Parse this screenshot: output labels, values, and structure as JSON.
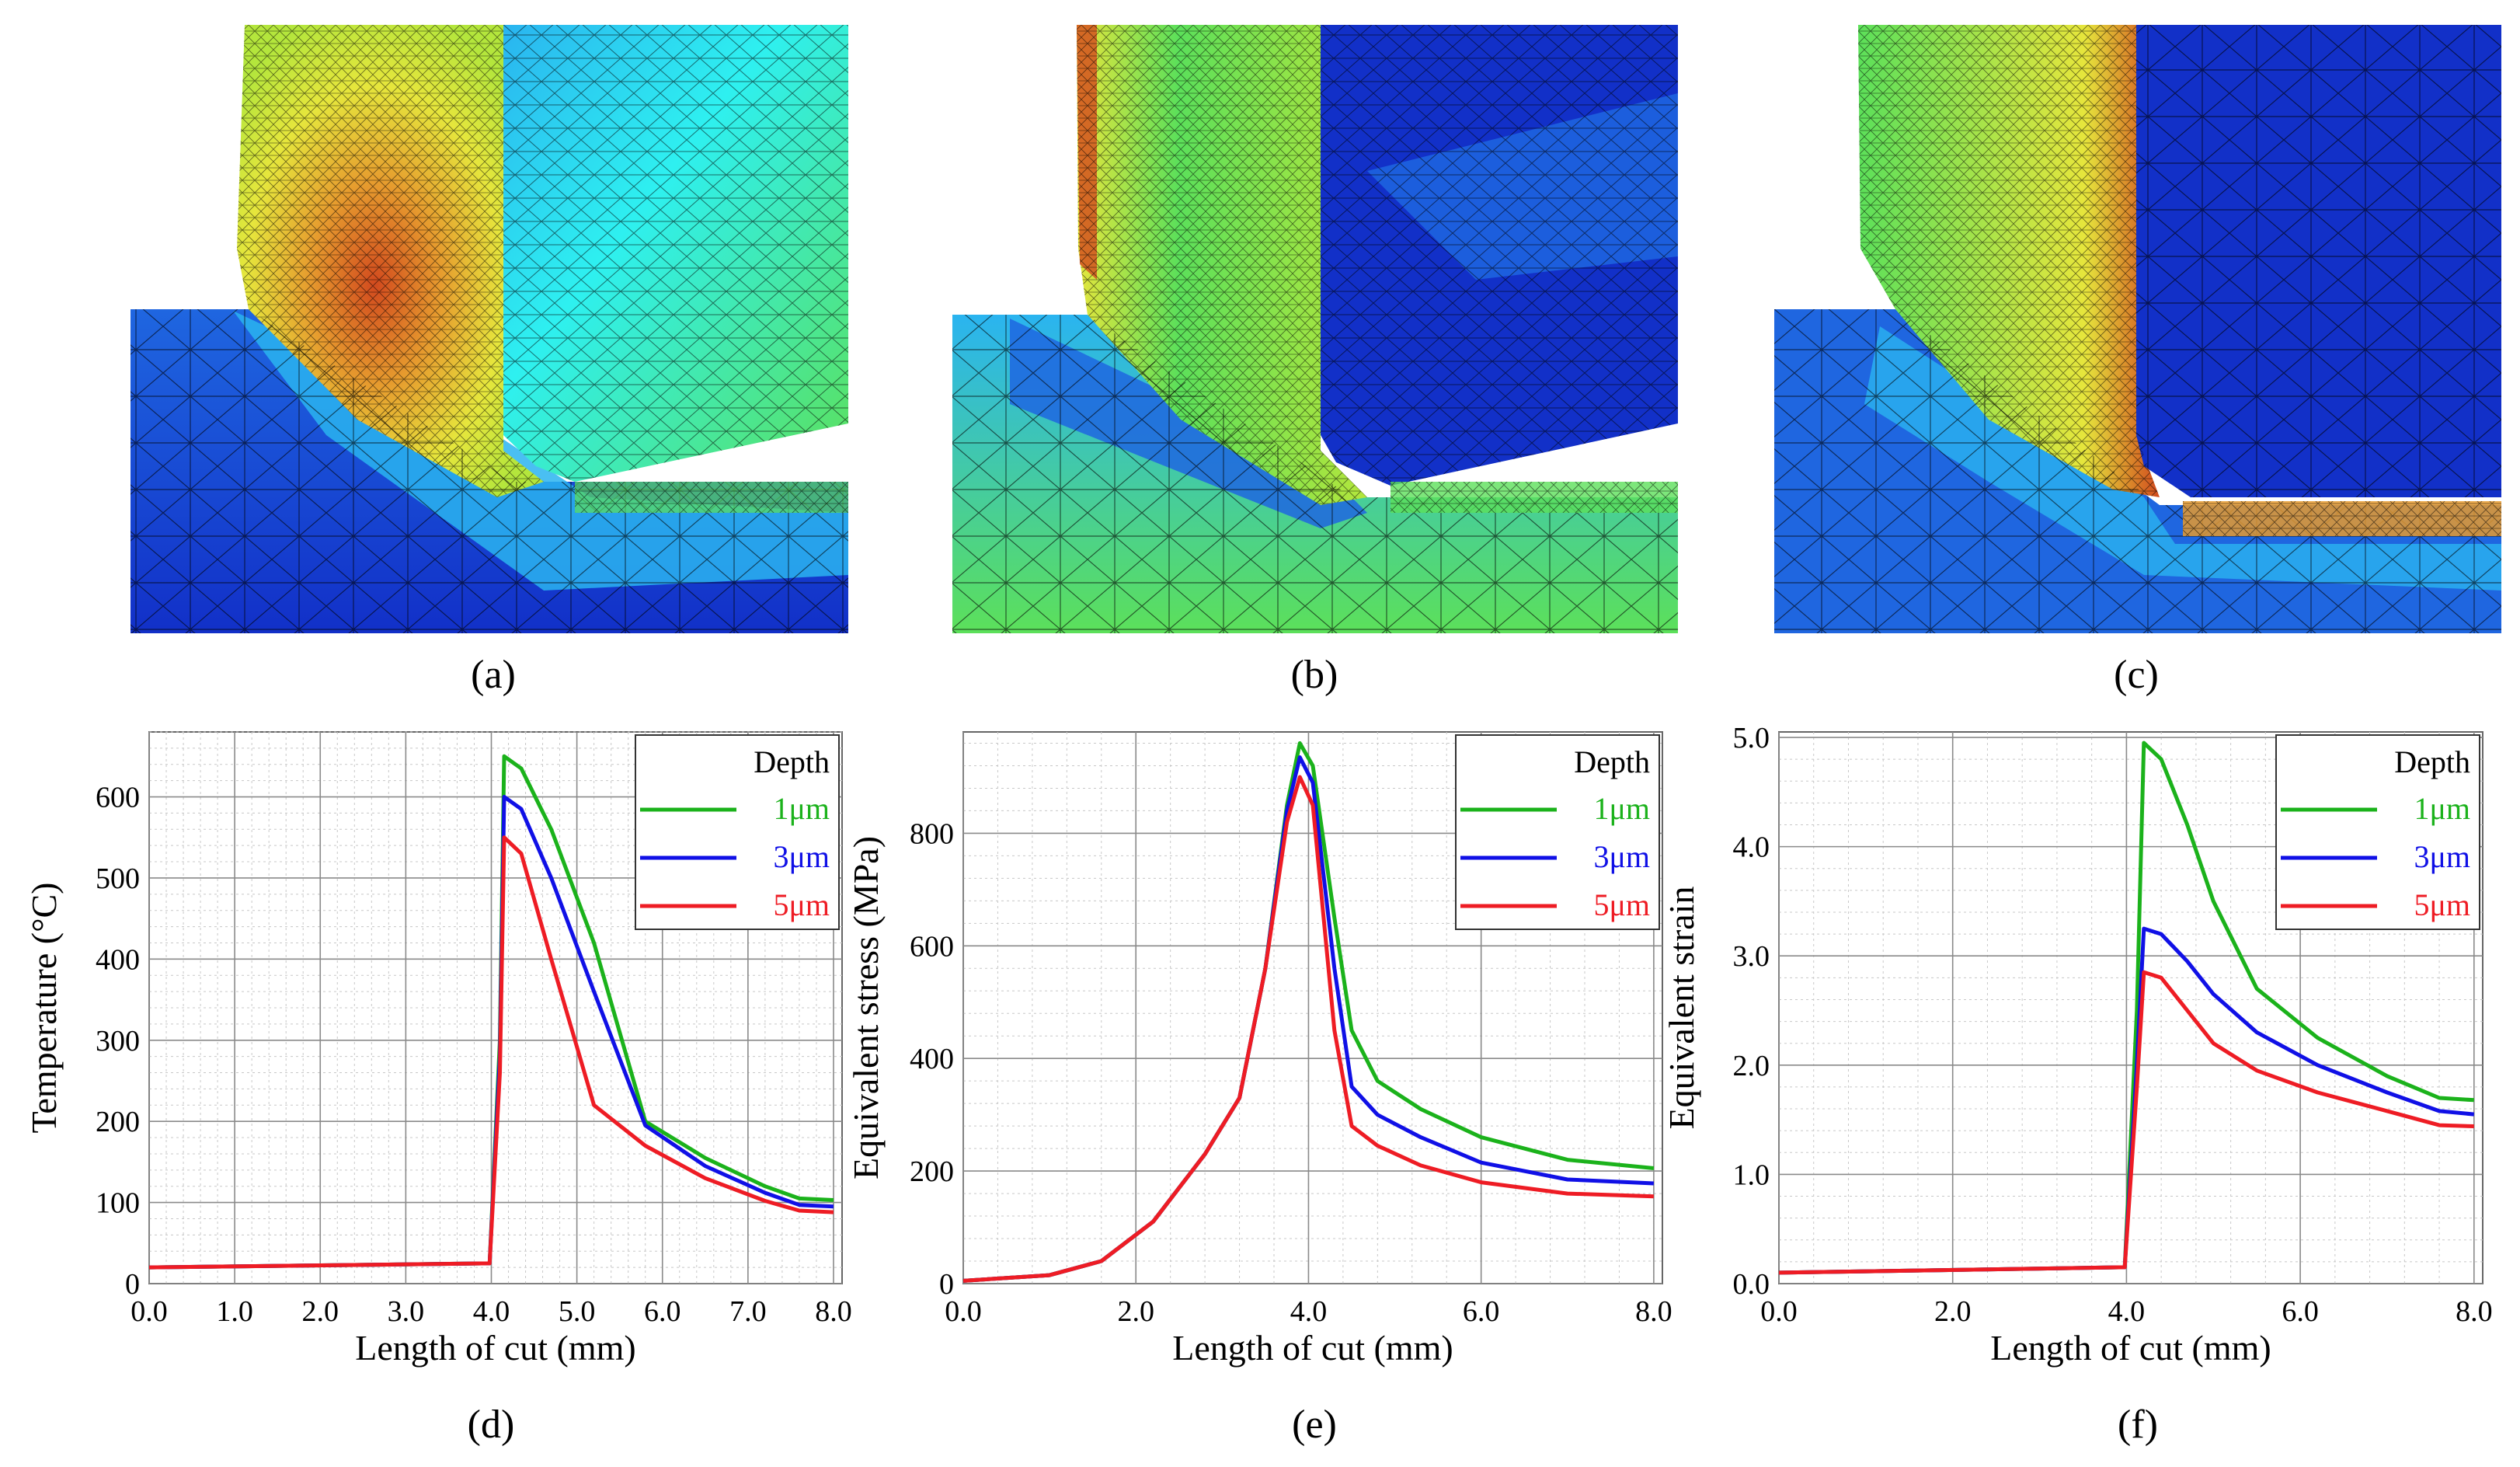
{
  "panel_labels": [
    "(a)",
    "(b)",
    "(c)",
    "(d)",
    "(e)",
    "(f)"
  ],
  "legend": {
    "title": "Depth",
    "entries": [
      {
        "label": "1μm",
        "color": "#1bb21b"
      },
      {
        "label": "3μm",
        "color": "#1010e6"
      },
      {
        "label": "5μm",
        "color": "#ee1c24"
      }
    ]
  },
  "contour_colors": {
    "deep_blue": "#1230c8",
    "blue": "#1f66e0",
    "light_blue": "#2ab4f0",
    "cyan": "#2ef0f0",
    "green": "#5ce05a",
    "yellow_green": "#b4e63c",
    "yellow": "#e6e63c",
    "orange": "#e69a2e",
    "red": "#d24a1e"
  },
  "chart_data": [
    {
      "type": "line",
      "xlabel": "Length of cut (mm)",
      "ylabel": "Temperature (°C)",
      "xlim": [
        0,
        8.1
      ],
      "ylim": [
        0,
        680
      ],
      "xticks": [
        "0.0",
        "1.0",
        "2.0",
        "3.0",
        "4.0",
        "5.0",
        "6.0",
        "7.0",
        "8.0"
      ],
      "yticks": [
        "0",
        "100",
        "200",
        "300",
        "400",
        "500",
        "600"
      ],
      "grid": true,
      "legend_position": "top-right",
      "series": [
        {
          "name": "1μm",
          "x": [
            0,
            3.98,
            4.1,
            4.15,
            4.35,
            4.7,
            5.2,
            5.8,
            6.5,
            7.2,
            7.6,
            8.0
          ],
          "y": [
            20,
            25,
            300,
            650,
            635,
            560,
            420,
            200,
            155,
            120,
            105,
            103
          ]
        },
        {
          "name": "3μm",
          "x": [
            0,
            3.98,
            4.1,
            4.15,
            4.35,
            4.7,
            5.2,
            5.8,
            6.5,
            7.2,
            7.6,
            8.0
          ],
          "y": [
            20,
            25,
            280,
            600,
            585,
            500,
            360,
            195,
            145,
            112,
            97,
            95
          ]
        },
        {
          "name": "5μm",
          "x": [
            0,
            3.98,
            4.1,
            4.15,
            4.35,
            4.7,
            5.2,
            5.8,
            6.5,
            7.2,
            7.6,
            8.0
          ],
          "y": [
            20,
            25,
            260,
            550,
            530,
            400,
            220,
            170,
            130,
            102,
            90,
            88
          ]
        }
      ]
    },
    {
      "type": "line",
      "xlabel": "Length of cut (mm)",
      "ylabel": "Equivalent stress (MPa)",
      "xlim": [
        0,
        8.1
      ],
      "ylim": [
        0,
        980
      ],
      "xticks": [
        "0.0",
        "2.0",
        "4.0",
        "6.0",
        "8.0"
      ],
      "yticks": [
        "0",
        "200",
        "400",
        "600",
        "800"
      ],
      "grid": true,
      "legend_position": "top-right",
      "series": [
        {
          "name": "1μm",
          "x": [
            0,
            1,
            1.6,
            2.2,
            2.8,
            3.2,
            3.5,
            3.75,
            3.9,
            4.05,
            4.3,
            4.5,
            4.8,
            5.3,
            6.0,
            7.0,
            8.0
          ],
          "y": [
            5,
            15,
            40,
            110,
            230,
            330,
            560,
            850,
            960,
            920,
            650,
            450,
            360,
            310,
            260,
            220,
            205
          ]
        },
        {
          "name": "3μm",
          "x": [
            0,
            1,
            1.6,
            2.2,
            2.8,
            3.2,
            3.5,
            3.75,
            3.9,
            4.05,
            4.3,
            4.5,
            4.8,
            5.3,
            6.0,
            7.0,
            8.0
          ],
          "y": [
            5,
            15,
            40,
            110,
            230,
            330,
            560,
            840,
            935,
            890,
            560,
            350,
            300,
            260,
            215,
            185,
            178
          ]
        },
        {
          "name": "5μm",
          "x": [
            0,
            1,
            1.6,
            2.2,
            2.8,
            3.2,
            3.5,
            3.75,
            3.9,
            4.05,
            4.3,
            4.5,
            4.8,
            5.3,
            6.0,
            7.0,
            8.0
          ],
          "y": [
            5,
            15,
            40,
            110,
            230,
            330,
            560,
            820,
            900,
            850,
            450,
            280,
            245,
            210,
            180,
            160,
            155
          ]
        }
      ]
    },
    {
      "type": "line",
      "xlabel": "Length of cut (mm)",
      "ylabel": "Equivalent strain",
      "xlim": [
        0,
        8.1
      ],
      "ylim": [
        0,
        5.05
      ],
      "xticks": [
        "0.0",
        "2.0",
        "4.0",
        "6.0",
        "8.0"
      ],
      "yticks": [
        "0.0",
        "1.0",
        "2.0",
        "3.0",
        "4.0",
        "5.0"
      ],
      "grid": true,
      "legend_position": "top-right",
      "series": [
        {
          "name": "1μm",
          "x": [
            0,
            3.98,
            4.12,
            4.2,
            4.4,
            4.7,
            5.0,
            5.5,
            6.2,
            7.0,
            7.6,
            8.0
          ],
          "y": [
            0.1,
            0.15,
            2.5,
            4.95,
            4.8,
            4.2,
            3.5,
            2.7,
            2.25,
            1.9,
            1.7,
            1.68
          ]
        },
        {
          "name": "3μm",
          "x": [
            0,
            3.98,
            4.12,
            4.2,
            4.4,
            4.7,
            5.0,
            5.5,
            6.2,
            7.0,
            7.6,
            8.0
          ],
          "y": [
            0.1,
            0.15,
            2.0,
            3.25,
            3.2,
            2.95,
            2.65,
            2.3,
            2.0,
            1.75,
            1.58,
            1.55
          ]
        },
        {
          "name": "5μm",
          "x": [
            0,
            3.98,
            4.12,
            4.2,
            4.4,
            4.7,
            5.0,
            5.5,
            6.2,
            7.0,
            7.6,
            8.0
          ],
          "y": [
            0.1,
            0.15,
            1.8,
            2.85,
            2.8,
            2.5,
            2.2,
            1.95,
            1.75,
            1.58,
            1.45,
            1.44
          ]
        }
      ]
    }
  ]
}
